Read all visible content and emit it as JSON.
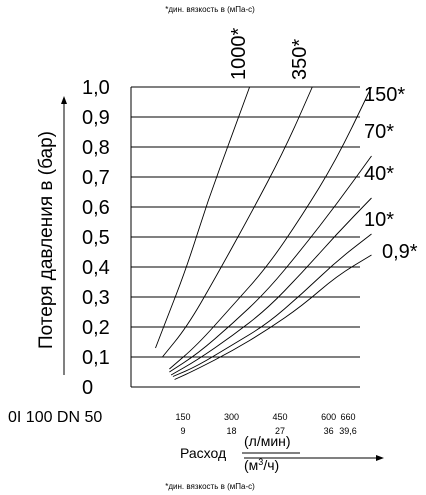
{
  "top_note": "*дин. вязкость в (мПа-с)",
  "bottom_note": "*дин. вязкость в (мПа-с)",
  "model_label": "0I 100 DN 50",
  "chart_data": {
    "type": "line",
    "ylabel": "Потеря давления в (бар)",
    "xlabel": "Расход",
    "xlabel_unit_top": "(л/мин)",
    "xlabel_unit_bottom_base": "(м",
    "xlabel_unit_bottom_sup": "3",
    "xlabel_unit_bottom_end": "/ч)",
    "ylim": [
      0,
      1.0
    ],
    "xlim": [
      0,
      680
    ],
    "y_ticks": [
      "1,0",
      "0,9",
      "0,8",
      "0,7",
      "0,6",
      "0,5",
      "0,4",
      "0,3",
      "0,2",
      "0,1",
      "0"
    ],
    "x_ticks_lpm": [
      "150",
      "300",
      "450",
      "600",
      "660"
    ],
    "x_ticks_m3h": [
      "9",
      "18",
      "27",
      "36",
      "39,6"
    ],
    "grid": true,
    "series": [
      {
        "name": "1000*",
        "points": [
          [
            30,
            0.13
          ],
          [
            60,
            0.22
          ],
          [
            120,
            0.4
          ],
          [
            180,
            0.62
          ],
          [
            250,
            0.84
          ],
          [
            300,
            1.0
          ]
        ]
      },
      {
        "name": "350*",
        "points": [
          [
            50,
            0.1
          ],
          [
            120,
            0.2
          ],
          [
            200,
            0.36
          ],
          [
            300,
            0.57
          ],
          [
            400,
            0.79
          ],
          [
            480,
            1.0
          ]
        ]
      },
      {
        "name": "150*",
        "points": [
          [
            70,
            0.06
          ],
          [
            150,
            0.14
          ],
          [
            250,
            0.27
          ],
          [
            350,
            0.4
          ],
          [
            450,
            0.57
          ],
          [
            550,
            0.76
          ],
          [
            650,
            1.0
          ]
        ]
      },
      {
        "name": "70*",
        "points": [
          [
            70,
            0.05
          ],
          [
            150,
            0.11
          ],
          [
            250,
            0.21
          ],
          [
            350,
            0.32
          ],
          [
            450,
            0.46
          ],
          [
            550,
            0.61
          ],
          [
            650,
            0.77
          ]
        ]
      },
      {
        "name": "40*",
        "points": [
          [
            75,
            0.04
          ],
          [
            150,
            0.09
          ],
          [
            250,
            0.17
          ],
          [
            350,
            0.26
          ],
          [
            450,
            0.38
          ],
          [
            550,
            0.51
          ],
          [
            650,
            0.63
          ]
        ]
      },
      {
        "name": "10*",
        "points": [
          [
            80,
            0.035
          ],
          [
            150,
            0.07
          ],
          [
            250,
            0.14
          ],
          [
            350,
            0.21
          ],
          [
            450,
            0.31
          ],
          [
            550,
            0.42
          ],
          [
            650,
            0.51
          ]
        ]
      },
      {
        "name": "0,9*",
        "points": [
          [
            85,
            0.025
          ],
          [
            150,
            0.06
          ],
          [
            250,
            0.12
          ],
          [
            350,
            0.19
          ],
          [
            450,
            0.27
          ],
          [
            550,
            0.37
          ],
          [
            650,
            0.44
          ]
        ]
      }
    ]
  }
}
